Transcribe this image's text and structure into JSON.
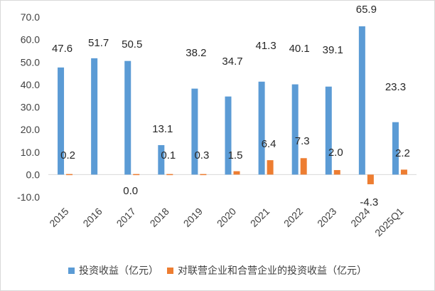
{
  "chart_data": {
    "type": "bar",
    "categories": [
      "2015",
      "2016",
      "2017",
      "2018",
      "2019",
      "2020",
      "2021",
      "2022",
      "2023",
      "2024",
      "2025Q1"
    ],
    "series": [
      {
        "name": "投资收益（亿元）",
        "color": "#5B9BD5",
        "values": [
          47.6,
          51.7,
          50.5,
          13.1,
          38.2,
          34.7,
          41.3,
          40.1,
          39.1,
          65.9,
          23.3
        ],
        "labels": [
          "47.6",
          "51.7",
          "50.5",
          "13.1",
          "38.2",
          "34.7",
          "41.3",
          "40.1",
          "39.1",
          "65.9",
          "23.3"
        ]
      },
      {
        "name": "对联营企业和合营企业的投资收益（亿元）",
        "color": "#ED7D31",
        "values": [
          0.2,
          null,
          0.0,
          0.1,
          0.3,
          1.5,
          6.4,
          7.3,
          2.0,
          -4.3,
          2.2
        ],
        "labels": [
          "0.2",
          "",
          "0.0",
          "0.1",
          "0.3",
          "1.5",
          "6.4",
          "7.3",
          "2.0",
          "-4.3",
          "2.2"
        ]
      }
    ],
    "ylim": [
      -10,
      70
    ],
    "yticks": [
      "-10.0",
      "0.0",
      "10.0",
      "20.0",
      "30.0",
      "40.0",
      "50.0",
      "60.0",
      "70.0"
    ],
    "grid": false,
    "legend": "bottom"
  }
}
